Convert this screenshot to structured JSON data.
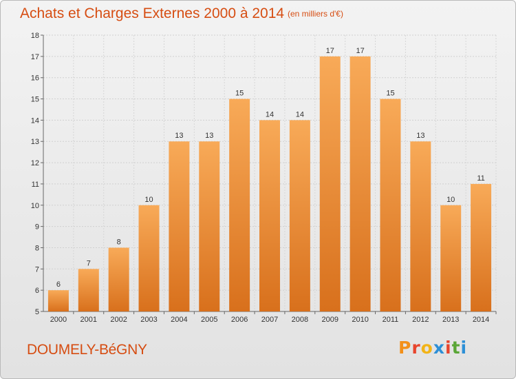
{
  "header": {
    "title": "Achats et Charges Externes 2000 à 2014",
    "subtitle": "(en milliers d'€)"
  },
  "footer": {
    "commune": "DOUMELY-BéGNY",
    "logo_text": "Proxiti",
    "logo_colors": [
      "#f39019",
      "#e8452d",
      "#f2b418",
      "#2d8fd6",
      "#e8452d",
      "#5aa637",
      "#2d8fd6"
    ]
  },
  "colors": {
    "bar_light": "#f8aa58",
    "bar_dark": "#d8701c",
    "text_accent": "#d64d12"
  },
  "chart_data": {
    "type": "bar",
    "title": "Achats et Charges Externes 2000 à 2014",
    "subtitle": "(en milliers d'€)",
    "categories": [
      "2000",
      "2001",
      "2002",
      "2003",
      "2004",
      "2005",
      "2006",
      "2007",
      "2008",
      "2009",
      "2010",
      "2011",
      "2012",
      "2013",
      "2014"
    ],
    "values": [
      6,
      7,
      8,
      10,
      13,
      13,
      15,
      14,
      14,
      17,
      17,
      15,
      13,
      10,
      11
    ],
    "ylim": [
      5,
      18
    ],
    "yticks": [
      5,
      6,
      7,
      8,
      9,
      10,
      11,
      12,
      13,
      14,
      15,
      16,
      17,
      18
    ],
    "grid": true,
    "data_labels": true
  }
}
